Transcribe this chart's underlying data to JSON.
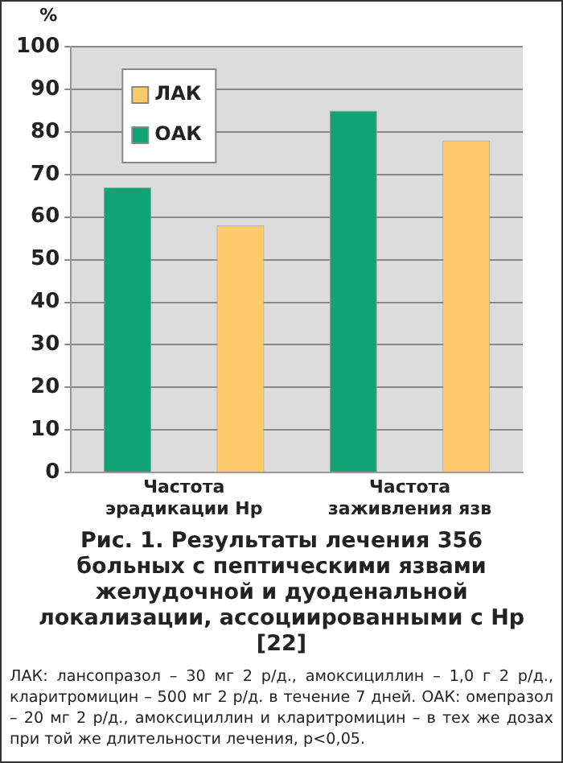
{
  "chart_data": {
    "type": "bar",
    "title": "Рис. 1. Результаты лечения 356 больных с пептическими язвами желудочной и дуоденальной локализации, ассоциированными с Hp [22]",
    "ylabel": "%",
    "categories": [
      "Частота эрадикации Hp",
      "Частота заживления язв"
    ],
    "series": [
      {
        "name": "ОАК",
        "color": "#12a374",
        "values": [
          67,
          85
        ]
      },
      {
        "name": "ЛАК",
        "color": "#fecb6a",
        "values": [
          58,
          78
        ]
      }
    ],
    "ylim": [
      0,
      100
    ],
    "yticks": [
      0,
      10,
      20,
      30,
      40,
      50,
      60,
      70,
      80,
      90,
      100
    ],
    "grid": "y",
    "legend": "top left",
    "annotations": [
      "ЛАК: лансопразол – 30 мг 2 р/д., амоксициллин – 1,0 г 2 р/д., кларитромицин – 500 мг 2 р/д. в течение 7 дней. ОАК: омепразол – 20 мг 2 р/д., амоксициллин и кларитромицин – в тех же дозах при той же длительности лечения, p<0,05."
    ]
  }
}
